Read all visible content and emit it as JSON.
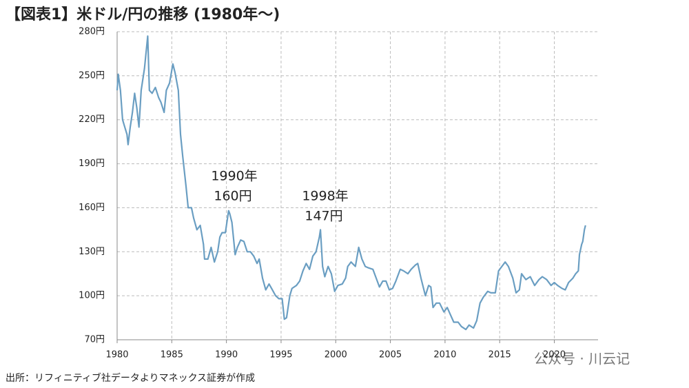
{
  "chart_data": {
    "type": "line",
    "title": "【図表1】米ドル/円の推移 (1980年～)",
    "source": "出所：リフィニティブ社データよりマネックス証券が作成",
    "watermark": "公众号 · 川云记",
    "annotations": [
      "1990年",
      "160円",
      "1998年",
      "147円"
    ],
    "color": "#6a9ec2",
    "grid": true,
    "xlim": [
      1980,
      2024
    ],
    "xticks": [
      1980,
      1985,
      1990,
      1995,
      2000,
      2005,
      2010,
      2015,
      2020
    ],
    "ylim": [
      70,
      280
    ],
    "yticks": [
      {
        "value": 70,
        "label": "70円"
      },
      {
        "value": 100,
        "label": "100円"
      },
      {
        "value": 130,
        "label": "130円"
      },
      {
        "value": 160,
        "label": "160円"
      },
      {
        "value": 190,
        "label": "190円"
      },
      {
        "value": 220,
        "label": "220円"
      },
      {
        "value": 250,
        "label": "250円"
      },
      {
        "value": 280,
        "label": "280円"
      }
    ],
    "x": [
      1980.0,
      1980.1,
      1980.3,
      1980.5,
      1980.7,
      1980.9,
      1981.0,
      1981.2,
      1981.4,
      1981.6,
      1981.8,
      1982.0,
      1982.2,
      1982.5,
      1982.8,
      1982.95,
      1983.2,
      1983.5,
      1983.8,
      1984.0,
      1984.3,
      1984.5,
      1984.8,
      1985.1,
      1985.3,
      1985.6,
      1985.8,
      1986.0,
      1986.3,
      1986.5,
      1986.8,
      1987.0,
      1987.3,
      1987.6,
      1987.9,
      1988.0,
      1988.3,
      1988.6,
      1988.9,
      1989.2,
      1989.4,
      1989.6,
      1989.9,
      1990.2,
      1990.3,
      1990.5,
      1990.8,
      1991.0,
      1991.3,
      1991.6,
      1991.9,
      1992.2,
      1992.5,
      1992.8,
      1993.0,
      1993.3,
      1993.6,
      1993.9,
      1994.2,
      1994.5,
      1994.8,
      1995.1,
      1995.3,
      1995.5,
      1995.8,
      1996.0,
      1996.4,
      1996.7,
      1997.0,
      1997.3,
      1997.6,
      1997.9,
      1998.2,
      1998.5,
      1998.6,
      1998.8,
      1999.0,
      1999.3,
      1999.6,
      1999.9,
      2000.2,
      2000.6,
      2000.9,
      2001.1,
      2001.4,
      2001.8,
      2002.1,
      2002.4,
      2002.7,
      2003.0,
      2003.4,
      2003.7,
      2004.0,
      2004.3,
      2004.6,
      2004.9,
      2005.2,
      2005.5,
      2005.9,
      2006.2,
      2006.6,
      2006.9,
      2007.3,
      2007.5,
      2007.8,
      2008.0,
      2008.2,
      2008.5,
      2008.7,
      2008.9,
      2009.2,
      2009.5,
      2009.9,
      2010.2,
      2010.5,
      2010.8,
      2011.2,
      2011.5,
      2011.9,
      2012.2,
      2012.6,
      2012.9,
      2013.2,
      2013.5,
      2013.9,
      2014.2,
      2014.6,
      2014.9,
      2015.2,
      2015.5,
      2015.8,
      2016.2,
      2016.5,
      2016.8,
      2017.0,
      2017.4,
      2017.8,
      2018.2,
      2018.6,
      2018.9,
      2019.3,
      2019.7,
      2020.0,
      2020.3,
      2020.7,
      2021.0,
      2021.3,
      2021.7,
      2021.95,
      2022.2,
      2022.3,
      2022.5,
      2022.6,
      2022.75,
      2022.85
    ],
    "values": [
      240,
      251,
      240,
      220,
      215,
      210,
      203,
      215,
      225,
      238,
      228,
      215,
      240,
      255,
      277,
      240,
      238,
      242,
      235,
      232,
      225,
      240,
      245,
      258,
      252,
      240,
      210,
      195,
      175,
      160,
      160,
      153,
      145,
      148,
      135,
      125,
      125,
      133,
      123,
      130,
      140,
      143,
      143,
      158,
      156,
      150,
      128,
      133,
      138,
      137,
      130,
      130,
      127,
      122,
      125,
      112,
      104,
      108,
      104,
      100,
      98,
      98,
      84,
      85,
      100,
      105,
      107,
      110,
      117,
      122,
      118,
      127,
      130,
      140,
      145,
      120,
      113,
      120,
      115,
      103,
      107,
      108,
      112,
      120,
      123,
      120,
      133,
      125,
      120,
      119,
      118,
      112,
      106,
      110,
      110,
      104,
      105,
      110,
      118,
      117,
      115,
      118,
      121,
      122,
      112,
      106,
      100,
      107,
      106,
      92,
      95,
      95,
      89,
      92,
      87,
      82,
      82,
      79,
      77,
      80,
      78,
      83,
      95,
      99,
      103,
      102,
      102,
      117,
      120,
      123,
      120,
      112,
      102,
      104,
      115,
      111,
      113,
      107,
      111,
      113,
      111,
      107,
      109,
      107,
      105,
      104,
      109,
      112,
      115,
      117,
      128,
      135,
      137,
      145,
      148
    ]
  }
}
